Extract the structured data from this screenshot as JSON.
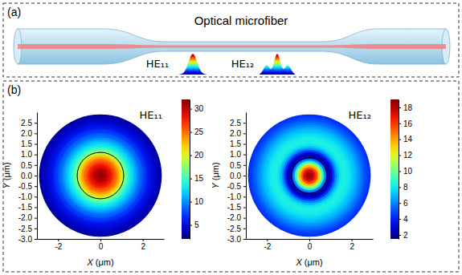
{
  "figure": {
    "panel_labels": [
      "(a)",
      "(b)"
    ],
    "title": "Optical microfiber",
    "mode_labels": [
      "HE₁₁",
      "HE₁₂"
    ]
  },
  "chart_data": [
    {
      "type": "heatmap",
      "title": "HE₁₁",
      "x_label": "X (μm)",
      "y_label": "Y (μm)",
      "xlim": [
        -3,
        3
      ],
      "ylim": [
        -3,
        3
      ],
      "xticks": [
        -2,
        0,
        2
      ],
      "yticks": [
        2.5,
        {
          "value": 2,
          "label": "2.0"
        },
        1.5,
        {
          "value": 1,
          "label": "1.0"
        },
        0.5,
        {
          "value": 0,
          "label": "0.0"
        },
        -0.5,
        {
          "value": -1,
          "label": "-1.0"
        },
        -1.5,
        {
          "value": -2,
          "label": "-2.0"
        },
        -2.5,
        {
          "value": -3,
          "label": "-3.0"
        }
      ],
      "ring_center": [
        0,
        0
      ],
      "ring_radius": [
        0.1,
        0.2,
        0.3,
        0.4,
        0.5,
        0.6,
        0.7,
        0.8,
        0.9,
        1.0,
        1.1,
        1.2,
        1.3,
        1.4,
        1.5,
        1.6,
        1.7,
        1.8,
        1.9,
        2.0,
        2.1,
        2.2,
        2.3,
        2.4,
        2.5,
        2.6,
        2.7,
        2.8,
        2.9
      ],
      "ring_values": [
        31.5,
        31,
        30.5,
        29.5,
        28.5,
        27.5,
        26,
        25,
        23.5,
        22,
        19,
        17,
        15.5,
        14,
        13,
        12,
        11,
        10,
        9,
        8.5,
        7.5,
        7,
        6,
        5.5,
        5,
        4.5,
        4,
        3.5,
        3
      ],
      "core_radius": 1.1,
      "colorbar_lim": [
        2,
        32
      ],
      "colorbar_ticks": [
        5,
        10,
        15,
        20,
        25,
        30
      ]
    },
    {
      "type": "heatmap",
      "title": "HE₁₂",
      "x_label": "X (μm)",
      "y_label": "Y (μm)",
      "xlim": [
        -3,
        3
      ],
      "ylim": [
        -3,
        3
      ],
      "xticks": [
        -2,
        0,
        2
      ],
      "yticks": [
        2.5,
        {
          "value": 2,
          "label": "2.0"
        },
        1.5,
        {
          "value": 1,
          "label": "1.0"
        },
        0.5,
        {
          "value": 0,
          "label": "0.0"
        },
        -0.5,
        {
          "value": -1,
          "label": "-1.0"
        },
        -1.5,
        {
          "value": -2,
          "label": "-2.0"
        },
        -2.5,
        {
          "value": -3,
          "label": "-3.0"
        }
      ],
      "ring_center": [
        0,
        0
      ],
      "ring_radius": [
        0.1,
        0.2,
        0.3,
        0.4,
        0.5,
        0.6,
        0.7,
        0.8,
        0.9,
        1.0,
        1.1,
        1.2,
        1.3,
        1.4,
        1.5,
        1.6,
        1.7,
        1.8,
        1.9,
        2.0,
        2.1,
        2.2,
        2.3,
        2.4,
        2.5,
        2.6,
        2.7,
        2.8,
        2.9
      ],
      "ring_values": [
        18.5,
        18,
        17,
        15.5,
        13.5,
        11,
        8.5,
        6,
        3.5,
        2.2,
        3,
        4.5,
        6,
        7,
        7.8,
        8.2,
        8.3,
        8.2,
        8,
        7.7,
        7.3,
        7,
        6.6,
        6.2,
        5.8,
        5.4,
        5,
        4.7,
        4.4
      ],
      "core_radius": 0.85,
      "colorbar_lim": [
        1.5,
        19
      ],
      "colorbar_ticks": [
        2,
        4,
        6,
        8,
        10,
        12,
        14,
        16,
        18
      ]
    }
  ]
}
